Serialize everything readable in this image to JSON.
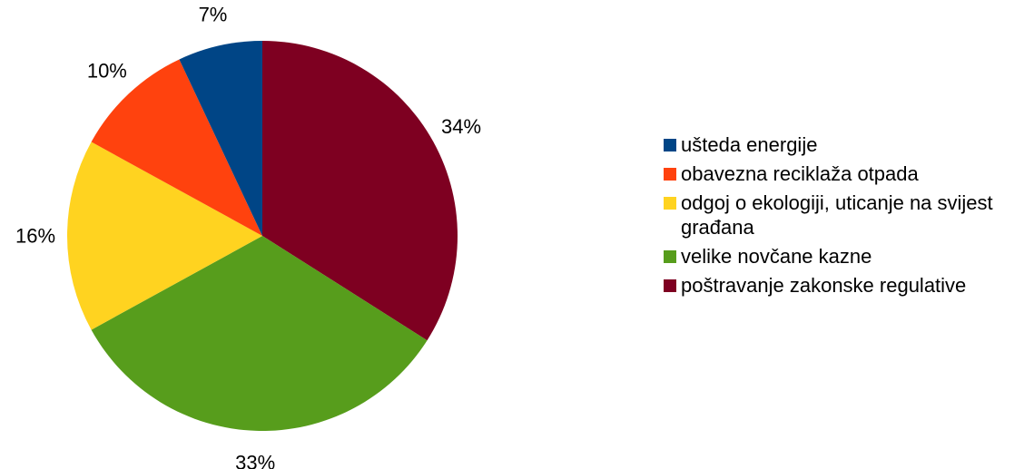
{
  "chart_data": {
    "type": "pie",
    "title": "",
    "start": "12 o'clock",
    "direction": "clockwise",
    "legend_position": "right",
    "slices": [
      {
        "label": "poštravanje zakonske regulative",
        "value": 34,
        "value_label": "34%",
        "color": "#7e0021"
      },
      {
        "label": "velike novčane kazne",
        "value": 33,
        "value_label": "33%",
        "color": "#579d1c"
      },
      {
        "label": "odgoj o ekologiji, uticanje na svijest građana",
        "value": 16,
        "value_label": "16%",
        "color": "#ffd320"
      },
      {
        "label": "obavezna reciklaža otpada",
        "value": 10,
        "value_label": "10%",
        "color": "#ff420e"
      },
      {
        "label": "ušteda energije",
        "value": 7,
        "value_label": "7%",
        "color": "#004586"
      }
    ],
    "legend_order": [
      "ušteda energije",
      "obavezna reciklaža otpada",
      "odgoj o ekologiji, uticanje na svijest građana",
      "velike novčane kazne",
      "poštravanje zakonske regulative"
    ]
  }
}
